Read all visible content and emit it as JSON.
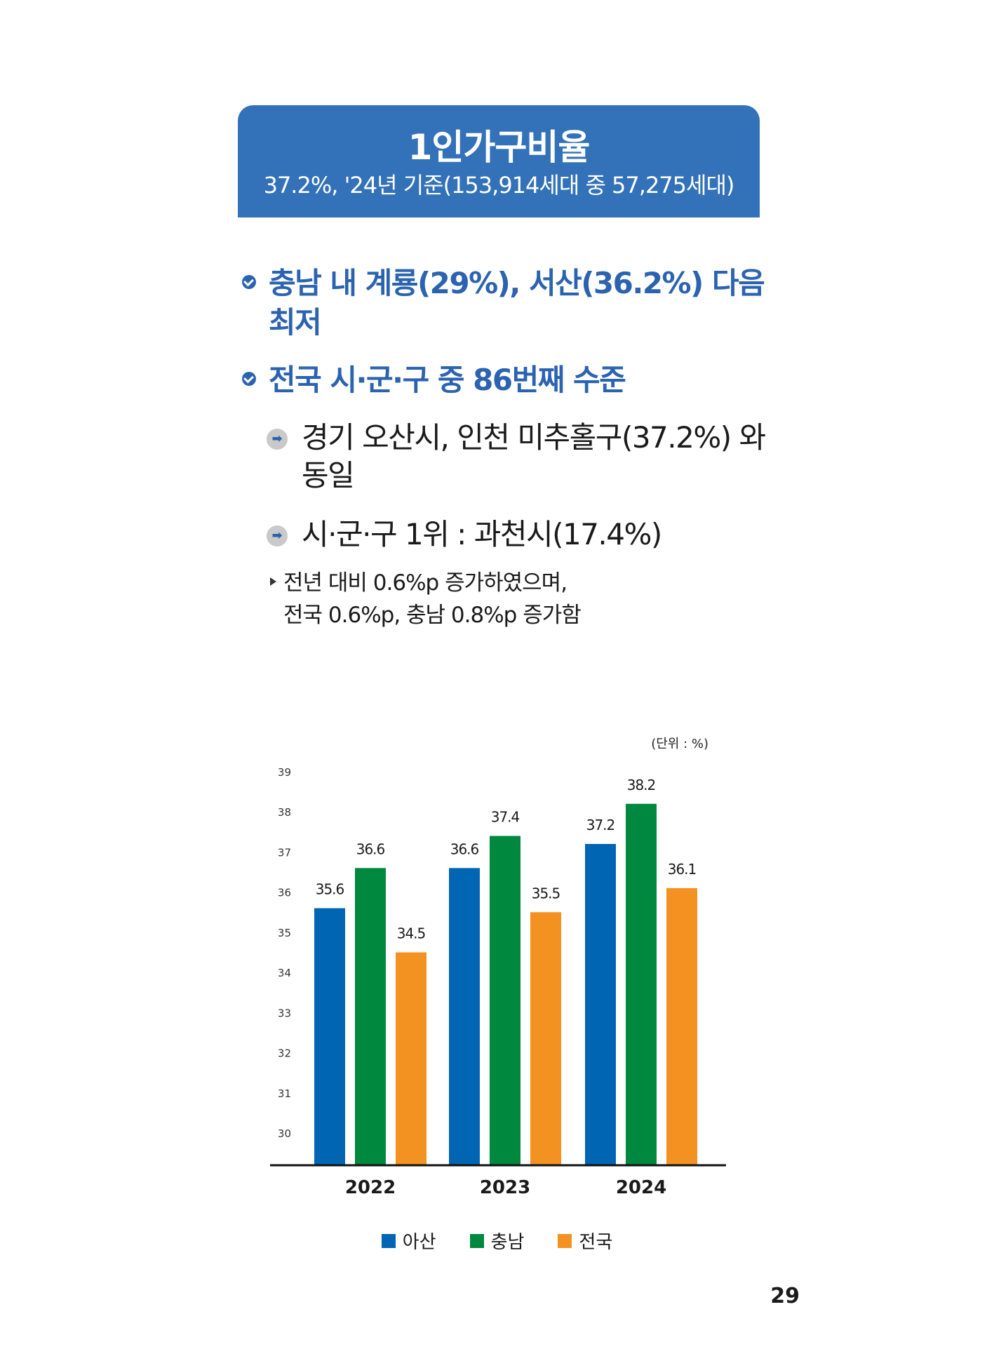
{
  "header": {
    "title": "1인가구비율",
    "subtitle": "37.2%, '24년 기준(153,914세대 중 57,275세대)"
  },
  "bullets": [
    {
      "text": "충남 내 계룡(29%), 서산(36.2%) 다음 최저"
    },
    {
      "text": "전국 시·군·구 중 86번째 수준"
    }
  ],
  "sub_items": [
    {
      "text": "경기 오산시, 인천 미추홀구(37.2%) 와 동일"
    },
    {
      "text": "시·군·구 1위 : 과천시(17.4%)"
    }
  ],
  "note": {
    "line1": "전년 대비 0.6%p 증가하였으며,",
    "line2": "전국 0.6%p, 충남 0.8%p 증가함"
  },
  "unit_label": "(단위 : %)",
  "colors": {
    "header_bg": "#3372b8",
    "asan": "#0066b3",
    "chungnam": "#00883f",
    "national": "#f39220",
    "accent_text": "#2c63b0"
  },
  "chart_data": {
    "type": "bar",
    "categories": [
      "2022",
      "2023",
      "2024"
    ],
    "series": [
      {
        "name": "아산",
        "color": "#0066b3",
        "values": [
          35.6,
          36.6,
          37.2
        ]
      },
      {
        "name": "충남",
        "color": "#00883f",
        "values": [
          36.6,
          37.4,
          38.2
        ]
      },
      {
        "name": "전국",
        "color": "#f39220",
        "values": [
          34.5,
          35.5,
          36.1
        ]
      }
    ],
    "ylim": [
      30,
      39
    ],
    "yticks": [
      "30",
      "31",
      "32",
      "33",
      "34",
      "35",
      "36",
      "37",
      "38",
      "39"
    ],
    "grid": false,
    "legend": "bottom"
  },
  "page_number": "29"
}
